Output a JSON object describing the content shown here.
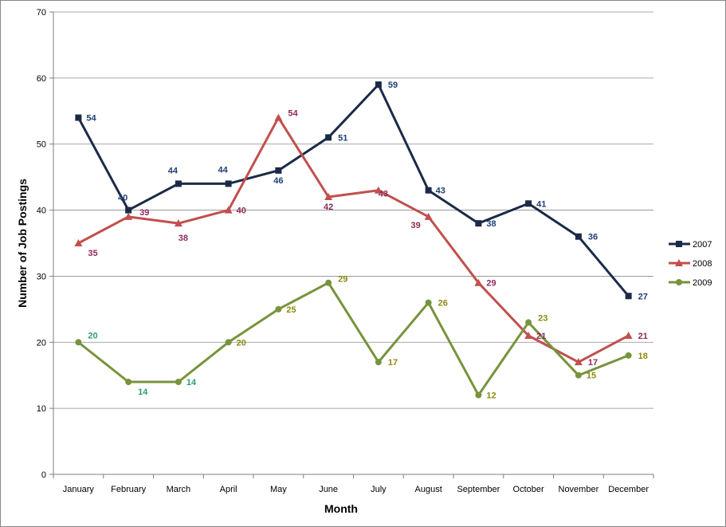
{
  "chart_data": {
    "type": "line",
    "title": "",
    "xlabel": "Month",
    "ylabel": "Number of Job Postings",
    "ylim": [
      0,
      70
    ],
    "yticks": [
      0,
      10,
      20,
      30,
      40,
      50,
      60,
      70
    ],
    "grid": true,
    "legend_position": "right",
    "categories": [
      "January",
      "February",
      "March",
      "April",
      "May",
      "June",
      "July",
      "August",
      "September",
      "October",
      "November",
      "December"
    ],
    "series": [
      {
        "name": "2007",
        "marker": "square",
        "color": "#1b2a48",
        "label_color": "#1f3f73",
        "values": [
          54,
          40,
          44,
          44,
          46,
          51,
          59,
          43,
          38,
          41,
          36,
          27
        ]
      },
      {
        "name": "2008",
        "marker": "triangle",
        "color": "#c0504d",
        "label_color": "#8b2a5a",
        "values": [
          35,
          39,
          38,
          40,
          54,
          42,
          43,
          39,
          29,
          21,
          17,
          21
        ]
      },
      {
        "name": "2009",
        "marker": "circle",
        "color": "#77933c",
        "label_color_first": "#2e9e6e",
        "label_color": "#8a8a10",
        "values": [
          20,
          14,
          14,
          20,
          25,
          29,
          17,
          26,
          12,
          23,
          15,
          18
        ]
      }
    ]
  }
}
